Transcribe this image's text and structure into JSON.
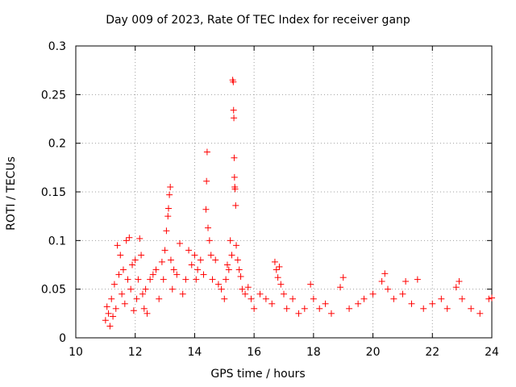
{
  "chart_data": {
    "type": "scatter",
    "title": "Day 009 of 2023, Rate Of TEC Index for receiver ganp",
    "xlabel": "GPS time / hours",
    "ylabel": "ROTI / TECUs",
    "xlim": [
      10,
      24
    ],
    "ylim": [
      0,
      0.3
    ],
    "xticks": [
      "10",
      "12",
      "14",
      "16",
      "18",
      "20",
      "22",
      "24"
    ],
    "yticks": [
      "0",
      "0.05",
      "0.1",
      "0.15",
      "0.2",
      "0.25",
      "0.3"
    ],
    "grid": true,
    "marker": "+",
    "color": "#ff0000",
    "series": [
      {
        "name": "ROTI",
        "points": [
          [
            11.0,
            0.018
          ],
          [
            11.05,
            0.032
          ],
          [
            11.1,
            0.025
          ],
          [
            11.15,
            0.012
          ],
          [
            11.2,
            0.04
          ],
          [
            11.25,
            0.022
          ],
          [
            11.3,
            0.055
          ],
          [
            11.35,
            0.03
          ],
          [
            11.4,
            0.095
          ],
          [
            11.45,
            0.065
          ],
          [
            11.5,
            0.085
          ],
          [
            11.55,
            0.045
          ],
          [
            11.6,
            0.07
          ],
          [
            11.65,
            0.035
          ],
          [
            11.7,
            0.1
          ],
          [
            11.75,
            0.06
          ],
          [
            11.8,
            0.103
          ],
          [
            11.85,
            0.05
          ],
          [
            11.9,
            0.075
          ],
          [
            11.95,
            0.028
          ],
          [
            12.0,
            0.08
          ],
          [
            12.05,
            0.04
          ],
          [
            12.1,
            0.06
          ],
          [
            12.15,
            0.102
          ],
          [
            12.2,
            0.085
          ],
          [
            12.25,
            0.045
          ],
          [
            12.3,
            0.03
          ],
          [
            12.35,
            0.05
          ],
          [
            12.4,
            0.025
          ],
          [
            12.5,
            0.06
          ],
          [
            12.6,
            0.065
          ],
          [
            12.7,
            0.07
          ],
          [
            12.8,
            0.04
          ],
          [
            12.9,
            0.078
          ],
          [
            12.95,
            0.06
          ],
          [
            13.0,
            0.09
          ],
          [
            13.05,
            0.11
          ],
          [
            13.1,
            0.125
          ],
          [
            13.12,
            0.133
          ],
          [
            13.15,
            0.147
          ],
          [
            13.18,
            0.155
          ],
          [
            13.2,
            0.08
          ],
          [
            13.25,
            0.05
          ],
          [
            13.3,
            0.07
          ],
          [
            13.4,
            0.065
          ],
          [
            13.5,
            0.097
          ],
          [
            13.6,
            0.045
          ],
          [
            13.7,
            0.06
          ],
          [
            13.8,
            0.09
          ],
          [
            13.9,
            0.075
          ],
          [
            14.0,
            0.085
          ],
          [
            14.05,
            0.06
          ],
          [
            14.1,
            0.07
          ],
          [
            14.2,
            0.08
          ],
          [
            14.3,
            0.065
          ],
          [
            14.38,
            0.132
          ],
          [
            14.4,
            0.161
          ],
          [
            14.42,
            0.191
          ],
          [
            14.45,
            0.113
          ],
          [
            14.5,
            0.1
          ],
          [
            14.55,
            0.085
          ],
          [
            14.6,
            0.06
          ],
          [
            14.7,
            0.08
          ],
          [
            14.8,
            0.055
          ],
          [
            14.9,
            0.05
          ],
          [
            15.0,
            0.04
          ],
          [
            15.05,
            0.06
          ],
          [
            15.1,
            0.075
          ],
          [
            15.15,
            0.07
          ],
          [
            15.2,
            0.1
          ],
          [
            15.25,
            0.085
          ],
          [
            15.28,
            0.265
          ],
          [
            15.3,
            0.263
          ],
          [
            15.31,
            0.234
          ],
          [
            15.32,
            0.226
          ],
          [
            15.33,
            0.185
          ],
          [
            15.34,
            0.165
          ],
          [
            15.35,
            0.155
          ],
          [
            15.36,
            0.153
          ],
          [
            15.38,
            0.136
          ],
          [
            15.4,
            0.095
          ],
          [
            15.45,
            0.08
          ],
          [
            15.5,
            0.07
          ],
          [
            15.55,
            0.063
          ],
          [
            15.6,
            0.05
          ],
          [
            15.7,
            0.045
          ],
          [
            15.8,
            0.052
          ],
          [
            15.9,
            0.04
          ],
          [
            16.0,
            0.03
          ],
          [
            16.2,
            0.045
          ],
          [
            16.4,
            0.04
          ],
          [
            16.6,
            0.035
          ],
          [
            16.7,
            0.078
          ],
          [
            16.75,
            0.07
          ],
          [
            16.8,
            0.062
          ],
          [
            16.85,
            0.073
          ],
          [
            16.9,
            0.055
          ],
          [
            17.0,
            0.045
          ],
          [
            17.1,
            0.03
          ],
          [
            17.3,
            0.04
          ],
          [
            17.5,
            0.025
          ],
          [
            17.7,
            0.03
          ],
          [
            17.9,
            0.055
          ],
          [
            18.0,
            0.04
          ],
          [
            18.2,
            0.03
          ],
          [
            18.4,
            0.035
          ],
          [
            18.6,
            0.025
          ],
          [
            18.9,
            0.052
          ],
          [
            19.0,
            0.062
          ],
          [
            19.2,
            0.03
          ],
          [
            19.5,
            0.035
          ],
          [
            19.7,
            0.04
          ],
          [
            20.0,
            0.045
          ],
          [
            20.3,
            0.058
          ],
          [
            20.4,
            0.066
          ],
          [
            20.5,
            0.05
          ],
          [
            20.7,
            0.04
          ],
          [
            21.0,
            0.045
          ],
          [
            21.1,
            0.058
          ],
          [
            21.3,
            0.035
          ],
          [
            21.5,
            0.06
          ],
          [
            21.7,
            0.03
          ],
          [
            22.0,
            0.035
          ],
          [
            22.3,
            0.04
          ],
          [
            22.5,
            0.03
          ],
          [
            22.8,
            0.052
          ],
          [
            22.9,
            0.058
          ],
          [
            23.0,
            0.04
          ],
          [
            23.3,
            0.03
          ],
          [
            23.6,
            0.025
          ],
          [
            23.9,
            0.04
          ],
          [
            24.0,
            0.041
          ]
        ]
      }
    ]
  }
}
